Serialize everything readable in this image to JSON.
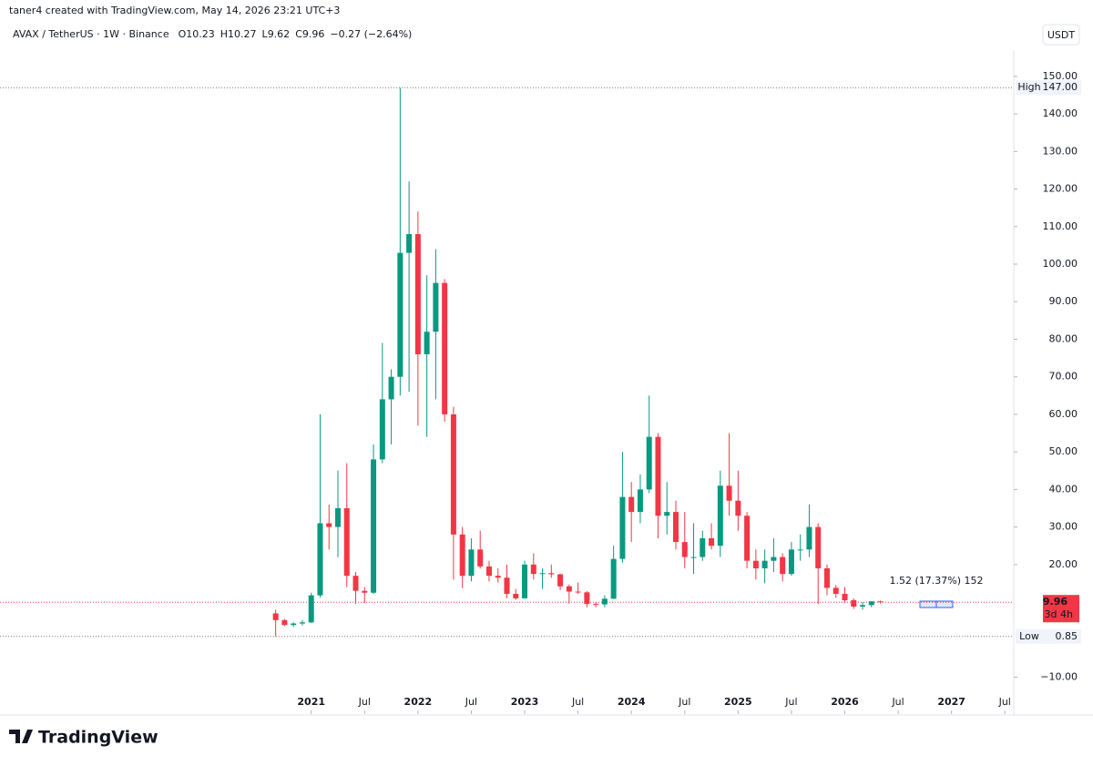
{
  "header": {
    "attribution": "taner4 created with TradingView.com, May 14, 2026 23:21 UTC+3",
    "symbol": "AVAX / TetherUS · 1W · Binance",
    "ohlc": [
      {
        "letter": "O",
        "value": 10.23
      },
      {
        "letter": "H",
        "value": 10.27
      },
      {
        "letter": "L",
        "value": 9.62
      },
      {
        "letter": "C",
        "value": 9.96
      }
    ],
    "change": "−0.27 (−2.64%)",
    "currency": "USDT"
  },
  "footer": {
    "logo": "TradingView"
  },
  "chart_data": {
    "type": "candlestick",
    "up_color": "#089981",
    "down_color": "#f23645",
    "x": [
      "2020-09",
      "2020-10",
      "2020-11",
      "2020-12",
      "2021-01",
      "2021-02",
      "2021-03",
      "2021-04",
      "2021-05",
      "2021-06",
      "2021-07",
      "2021-08",
      "2021-09",
      "2021-10",
      "2021-11",
      "2021-12",
      "2022-01",
      "2022-02",
      "2022-03",
      "2022-04",
      "2022-05",
      "2022-06",
      "2022-07",
      "2022-08",
      "2022-09",
      "2022-10",
      "2022-11",
      "2022-12",
      "2023-01",
      "2023-02",
      "2023-03",
      "2023-04",
      "2023-05",
      "2023-06",
      "2023-07",
      "2023-08",
      "2023-09",
      "2023-10",
      "2023-11",
      "2023-12",
      "2024-01",
      "2024-02",
      "2024-03",
      "2024-04",
      "2024-05",
      "2024-06",
      "2024-07",
      "2024-08",
      "2024-09",
      "2024-10",
      "2024-11",
      "2024-12",
      "2025-01",
      "2025-02",
      "2025-03",
      "2025-04",
      "2025-05",
      "2025-06",
      "2025-07",
      "2025-08",
      "2025-09",
      "2025-10",
      "2025-11",
      "2025-12",
      "2026-01",
      "2026-02",
      "2026-03",
      "2026-04",
      "2026-05"
    ],
    "open": [
      7.0,
      5.2,
      3.9,
      4.3,
      4.6,
      11.8,
      31,
      30,
      35,
      17,
      13,
      12.5,
      48,
      64,
      70,
      103,
      108,
      76,
      82,
      95,
      60,
      28,
      17,
      24,
      19.5,
      17,
      16.5,
      12.2,
      11,
      20,
      17.5,
      17.7,
      17.4,
      14.2,
      12.8,
      12.6,
      9.5,
      9.4,
      10.9,
      21.5,
      38,
      34,
      40,
      54,
      33,
      34,
      26,
      22,
      22,
      27,
      25,
      41,
      37,
      33,
      21,
      19,
      21,
      22,
      17.5,
      24,
      24,
      30,
      19,
      13.8,
      12.2,
      10.5,
      8.8,
      9.2,
      10.2
    ],
    "high": [
      8.0,
      5.5,
      4.6,
      5.2,
      12.5,
      60,
      36,
      45,
      47,
      18,
      14,
      52,
      79,
      72,
      147,
      122,
      114,
      97,
      104,
      96,
      62,
      30,
      27,
      29,
      21,
      19,
      20,
      13.5,
      21,
      23,
      19,
      20,
      17.6,
      14.7,
      15.2,
      12.9,
      10,
      11.8,
      25,
      50,
      42,
      44,
      65,
      55,
      42,
      37,
      34,
      31,
      29,
      31,
      45,
      55,
      45,
      34,
      24,
      24,
      27,
      23,
      26,
      28,
      36,
      31,
      20,
      14.5,
      14,
      11,
      10,
      10.3,
      10.4
    ],
    "low": [
      0.85,
      3.6,
      3.4,
      3.8,
      4.4,
      11.2,
      24,
      22,
      14,
      9.5,
      9.8,
      12.2,
      47,
      52,
      65,
      66,
      57,
      54,
      64,
      58,
      16,
      13.7,
      15.5,
      19,
      15.5,
      15.2,
      11,
      10.6,
      11,
      16,
      13.5,
      16.5,
      13.2,
      9.6,
      12.2,
      8.6,
      8.6,
      8.6,
      10.8,
      20.5,
      26,
      31,
      39,
      27,
      28,
      24,
      19,
      17.5,
      21,
      24,
      22,
      33,
      29,
      19,
      16,
      15,
      18,
      15.5,
      17,
      21,
      22,
      9.5,
      11.8,
      11.2,
      9.8,
      8.2,
      8.0,
      8.6,
      9.6
    ],
    "close": [
      5.2,
      3.9,
      4.3,
      4.6,
      11.8,
      31,
      30,
      35,
      17,
      13,
      12.5,
      48,
      64,
      70,
      103,
      108,
      76,
      82,
      95,
      60,
      28,
      17,
      24,
      19.5,
      17,
      16.5,
      12.2,
      11,
      20,
      17.5,
      17.7,
      17.4,
      14.2,
      12.8,
      12.6,
      9.5,
      9.4,
      10.9,
      21.5,
      38,
      34,
      40,
      54,
      33,
      34,
      26,
      22,
      22,
      27,
      25,
      41,
      37,
      33,
      21,
      19,
      21,
      22,
      17.5,
      24,
      24,
      30,
      19,
      13.8,
      12.2,
      10.5,
      8.8,
      9.2,
      10.2,
      9.96
    ],
    "xlim": [
      "2018-02",
      "2027-08"
    ],
    "xticks": [
      {
        "value": "2021-01",
        "label": "2021"
      },
      {
        "value": "2021-07",
        "label": "Jul"
      },
      {
        "value": "2022-01",
        "label": "2022"
      },
      {
        "value": "2022-07",
        "label": "Jul"
      },
      {
        "value": "2023-01",
        "label": "2023"
      },
      {
        "value": "2023-07",
        "label": "Jul"
      },
      {
        "value": "2024-01",
        "label": "2024"
      },
      {
        "value": "2024-07",
        "label": "Jul"
      },
      {
        "value": "2025-01",
        "label": "2025"
      },
      {
        "value": "2025-07",
        "label": "Jul"
      },
      {
        "value": "2026-01",
        "label": "2026"
      },
      {
        "value": "2026-07",
        "label": "Jul"
      },
      {
        "value": "2027-01",
        "label": "2027"
      },
      {
        "value": "2027-07",
        "label": "Jul"
      }
    ],
    "ylim": [
      -14,
      157
    ],
    "yticks": [
      {
        "value": -10,
        "label": "−10.00"
      },
      {
        "value": 20,
        "label": "20.00"
      },
      {
        "value": 30,
        "label": "30.00"
      },
      {
        "value": 40,
        "label": "40.00"
      },
      {
        "value": 50,
        "label": "50.00"
      },
      {
        "value": 60,
        "label": "60.00"
      },
      {
        "value": 70,
        "label": "70.00"
      },
      {
        "value": 80,
        "label": "80.00"
      },
      {
        "value": 90,
        "label": "90.00"
      },
      {
        "value": 100,
        "label": "100.00"
      },
      {
        "value": 110,
        "label": "110.00"
      },
      {
        "value": 120,
        "label": "120.00"
      },
      {
        "value": 130,
        "label": "130.00"
      },
      {
        "value": 140,
        "label": "140.00"
      },
      {
        "value": 150,
        "label": "150.00"
      }
    ],
    "high_marker": {
      "name": "High",
      "value": 147,
      "label": "147.00"
    },
    "low_marker": {
      "name": "Low",
      "value": 0.85,
      "label": "0.85"
    },
    "last_price": {
      "value": 9.96,
      "label": "9.96",
      "countdown": "3d 4h"
    },
    "annotation": "1.52 (17.37%) 152"
  }
}
